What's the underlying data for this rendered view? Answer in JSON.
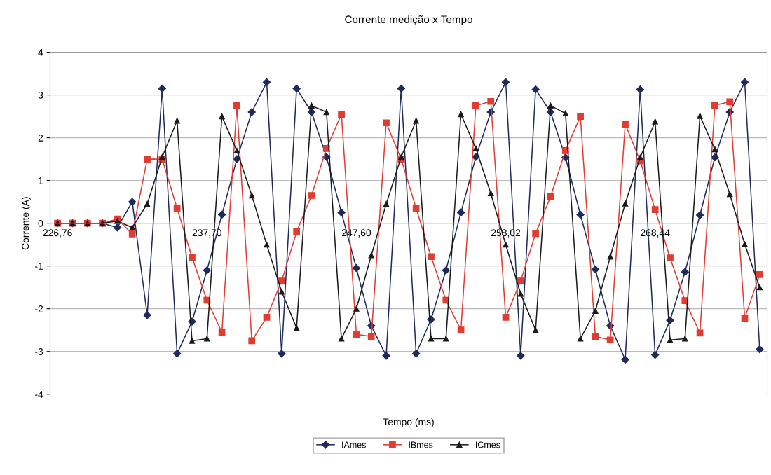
{
  "chart_data": {
    "type": "line",
    "title": "Corrente medição x Tempo",
    "xlabel": "Tempo (ms)",
    "ylabel": "Corrente (A)",
    "categories": [
      "226,76",
      null,
      null,
      null,
      null,
      null,
      null,
      null,
      null,
      null,
      "237,70",
      null,
      null,
      null,
      null,
      null,
      null,
      null,
      null,
      null,
      "247,60",
      null,
      null,
      null,
      null,
      null,
      null,
      null,
      null,
      null,
      "258,02",
      null,
      null,
      null,
      null,
      null,
      null,
      null,
      null,
      null,
      "268,44",
      null,
      null,
      null,
      null,
      null,
      null,
      null
    ],
    "ylim": [
      -4,
      4
    ],
    "yticks": [
      -4,
      -3,
      -2,
      -1,
      0,
      1,
      2,
      3,
      4
    ],
    "grid": "y",
    "legend": "bottom",
    "line_style": "solid",
    "series": [
      {
        "name": "IAmes",
        "color": "#1f2a5c",
        "marker": "diamond",
        "values": [
          0,
          0,
          0,
          0,
          -0.1,
          0.5,
          -2.15,
          3.15,
          -3.05,
          -2.3,
          -1.1,
          0.2,
          1.5,
          2.6,
          3.3,
          -3.05,
          3.15,
          2.6,
          1.55,
          0.25,
          -1.05,
          -2.4,
          -3.1,
          3.15,
          -3.05,
          -2.25,
          -1.1,
          0.25,
          1.55,
          2.6,
          3.3,
          -3.1,
          3.13,
          2.6,
          1.54,
          0.2,
          -1.08,
          -2.4,
          -3.19,
          3.13,
          -3.08,
          -2.27,
          -1.14,
          0.19,
          1.54,
          2.6,
          3.3,
          -2.95
        ]
      },
      {
        "name": "IBmes",
        "color": "#e03c31",
        "marker": "square",
        "values": [
          0,
          0,
          0,
          0,
          0.1,
          -0.25,
          1.5,
          1.5,
          0.35,
          -0.8,
          -1.8,
          -2.55,
          2.75,
          -2.75,
          -2.2,
          -1.35,
          -0.2,
          0.65,
          1.75,
          2.55,
          -2.6,
          -2.65,
          2.35,
          1.5,
          0.35,
          -0.78,
          -1.8,
          -2.5,
          2.75,
          2.85,
          -2.2,
          -1.35,
          -0.24,
          0.62,
          1.7,
          2.5,
          -2.65,
          -2.73,
          2.32,
          1.46,
          0.32,
          -0.81,
          -1.81,
          -2.57,
          2.76,
          2.84,
          -2.22,
          -1.2
        ]
      },
      {
        "name": "ICmes",
        "color": "#1a1a1a",
        "marker": "triangle",
        "values": [
          0,
          0,
          0,
          0,
          0.05,
          -0.1,
          0.45,
          1.55,
          2.4,
          -2.75,
          -2.7,
          2.5,
          1.7,
          0.65,
          -0.5,
          -1.6,
          -2.45,
          2.75,
          2.6,
          -2.7,
          -2.0,
          -0.75,
          0.45,
          1.55,
          2.4,
          -2.7,
          -2.7,
          2.55,
          1.75,
          0.7,
          -0.5,
          -1.65,
          -2.5,
          2.75,
          2.57,
          -2.7,
          -2.05,
          -0.78,
          0.46,
          1.54,
          2.38,
          -2.73,
          -2.7,
          2.51,
          1.73,
          0.68,
          -0.49,
          -1.5
        ]
      }
    ]
  }
}
